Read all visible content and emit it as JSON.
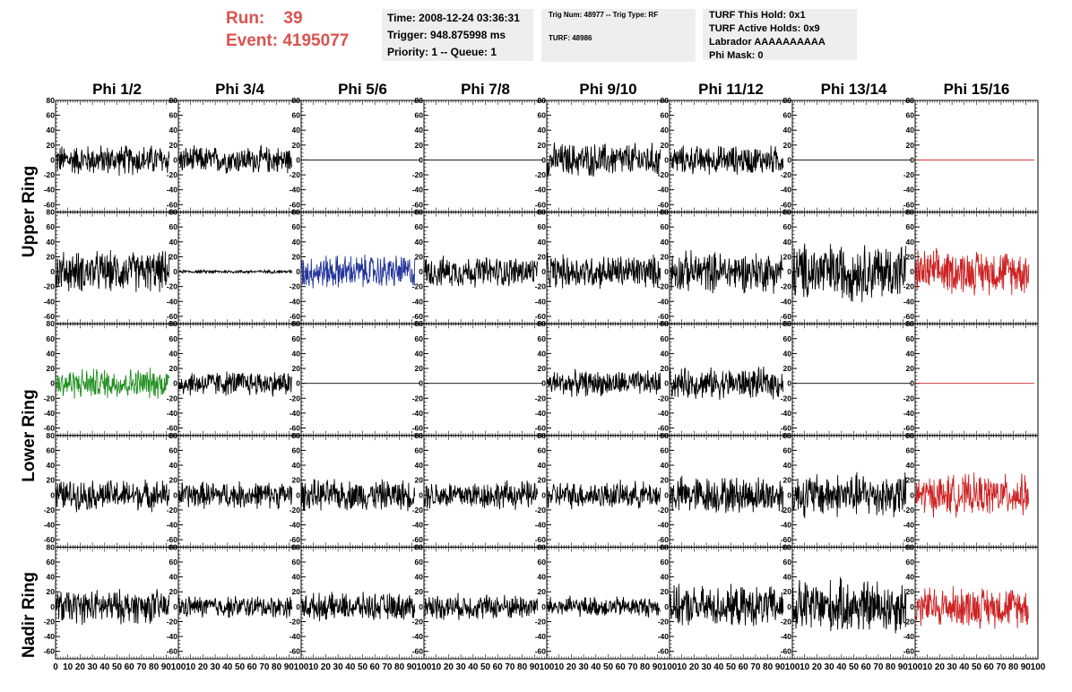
{
  "header": {
    "run_label": "Run:",
    "run_value": "39",
    "event_label": "Event:",
    "event_value": "4195077",
    "time": "Time: 2008-12-24 03:36:31",
    "trigger": "Trigger: 948.875998 ms",
    "priority": "Priority: 1 -- Queue: 1",
    "trig_num": "Trig Num: 48977 -- Trig Type: RF",
    "turf": "TURF: 48986",
    "turf_this_hold": "TURF This Hold: 0x1",
    "turf_active_holds": "TURF Active Holds: 0x9",
    "labrador": "Labrador AAAAAAAAAA",
    "phi_mask": "Phi Mask: 0"
  },
  "chart_data": {
    "type": "line",
    "columns": [
      "Phi 1/2",
      "Phi 3/4",
      "Phi 5/6",
      "Phi 7/8",
      "Phi 9/10",
      "Phi 11/12",
      "Phi 13/14",
      "Phi 15/16"
    ],
    "ring_labels": [
      "Upper Ring",
      "Lower Ring",
      "Nadir Ring"
    ],
    "xlim": [
      0,
      100
    ],
    "ylim": [
      -70,
      80
    ],
    "yticks": [
      "-60",
      "-40",
      "-20",
      "0",
      "20",
      "40",
      "60",
      "80"
    ],
    "xticks": [
      "0",
      "10",
      "20",
      "30",
      "40",
      "50",
      "60",
      "70",
      "80",
      "90",
      "100"
    ],
    "colors": {
      "default": "#000000",
      "red": "#cc2222",
      "blue": "#22339a",
      "green": "#1f8f1f"
    },
    "rows": [
      {
        "panels": [
          {
            "color": "default",
            "amplitude": 18,
            "flat": false
          },
          {
            "color": "default",
            "amplitude": 16,
            "flat": false
          },
          {
            "color": "default",
            "amplitude": 0,
            "flat": true
          },
          {
            "color": "default",
            "amplitude": 0,
            "flat": true
          },
          {
            "color": "default",
            "amplitude": 20,
            "flat": false
          },
          {
            "color": "default",
            "amplitude": 17,
            "flat": false
          },
          {
            "color": "default",
            "amplitude": 0,
            "flat": true
          },
          {
            "color": "red",
            "amplitude": 0,
            "flat": true
          }
        ]
      },
      {
        "panels": [
          {
            "color": "default",
            "amplitude": 24,
            "flat": false
          },
          {
            "color": "default",
            "amplitude": 2,
            "flat": false
          },
          {
            "color": "blue",
            "amplitude": 20,
            "flat": false
          },
          {
            "color": "default",
            "amplitude": 18,
            "flat": false
          },
          {
            "color": "default",
            "amplitude": 20,
            "flat": false
          },
          {
            "color": "default",
            "amplitude": 24,
            "flat": false
          },
          {
            "color": "default",
            "amplitude": 34,
            "flat": false
          },
          {
            "color": "red",
            "amplitude": 26,
            "flat": false
          }
        ]
      },
      {
        "panels": [
          {
            "color": "green",
            "amplitude": 18,
            "flat": false
          },
          {
            "color": "default",
            "amplitude": 15,
            "flat": false
          },
          {
            "color": "default",
            "amplitude": 0,
            "flat": true
          },
          {
            "color": "default",
            "amplitude": 0,
            "flat": true
          },
          {
            "color": "default",
            "amplitude": 15,
            "flat": false
          },
          {
            "color": "default",
            "amplitude": 18,
            "flat": false
          },
          {
            "color": "default",
            "amplitude": 0,
            "flat": true
          },
          {
            "color": "red",
            "amplitude": 0,
            "flat": true
          }
        ]
      },
      {
        "panels": [
          {
            "color": "default",
            "amplitude": 18,
            "flat": false
          },
          {
            "color": "default",
            "amplitude": 16,
            "flat": false
          },
          {
            "color": "default",
            "amplitude": 18,
            "flat": false
          },
          {
            "color": "default",
            "amplitude": 17,
            "flat": false
          },
          {
            "color": "default",
            "amplitude": 16,
            "flat": false
          },
          {
            "color": "default",
            "amplitude": 22,
            "flat": false
          },
          {
            "color": "default",
            "amplitude": 26,
            "flat": false
          },
          {
            "color": "red",
            "amplitude": 24,
            "flat": false
          }
        ]
      },
      {
        "panels": [
          {
            "color": "default",
            "amplitude": 20,
            "flat": false
          },
          {
            "color": "default",
            "amplitude": 13,
            "flat": false
          },
          {
            "color": "default",
            "amplitude": 16,
            "flat": false
          },
          {
            "color": "default",
            "amplitude": 15,
            "flat": false
          },
          {
            "color": "default",
            "amplitude": 12,
            "flat": false
          },
          {
            "color": "default",
            "amplitude": 24,
            "flat": false
          },
          {
            "color": "default",
            "amplitude": 32,
            "flat": false
          },
          {
            "color": "red",
            "amplitude": 24,
            "flat": false
          }
        ]
      }
    ]
  }
}
